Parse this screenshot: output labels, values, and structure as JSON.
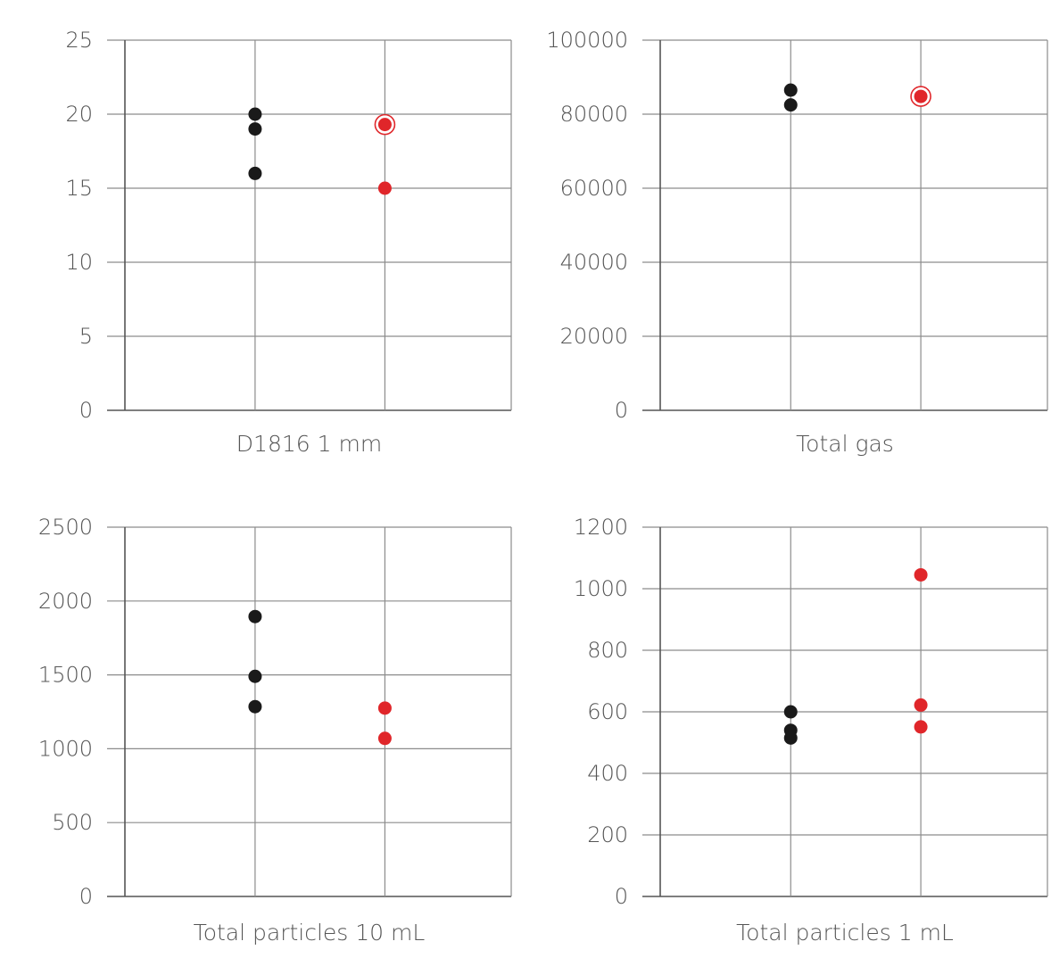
{
  "colors": {
    "grid": "#8c8c8c",
    "axis": "#555555",
    "text": "#555555",
    "group_a": "#1a1a1a",
    "group_b": "#e0262a"
  },
  "chart_data": [
    {
      "type": "scatter",
      "xlabel": "D1816 1 mm",
      "ylim": [
        0,
        25
      ],
      "yticks": [
        0,
        5,
        10,
        15,
        20,
        25
      ],
      "series": [
        {
          "color": "#1a1a1a",
          "points": [
            {
              "x": 1,
              "y": 20
            },
            {
              "x": 1,
              "y": 19
            },
            {
              "x": 1,
              "y": 16
            }
          ]
        },
        {
          "color": "#e0262a",
          "points": [
            {
              "x": 2,
              "y": 19.3,
              "ring": true
            },
            {
              "x": 2,
              "y": 15
            }
          ]
        }
      ]
    },
    {
      "type": "scatter",
      "xlabel": "Total gas",
      "ylim": [
        0,
        100000
      ],
      "yticks": [
        0,
        20000,
        40000,
        60000,
        80000,
        100000
      ],
      "series": [
        {
          "color": "#1a1a1a",
          "points": [
            {
              "x": 1,
              "y": 86500
            },
            {
              "x": 1,
              "y": 82500
            }
          ]
        },
        {
          "color": "#e0262a",
          "points": [
            {
              "x": 2,
              "y": 84800,
              "ring": true
            }
          ]
        }
      ]
    },
    {
      "type": "scatter",
      "xlabel": "Total particles 10 mL",
      "ylim": [
        0,
        2500
      ],
      "yticks": [
        0,
        500,
        1000,
        1500,
        2000,
        2500
      ],
      "series": [
        {
          "color": "#1a1a1a",
          "points": [
            {
              "x": 1,
              "y": 1895
            },
            {
              "x": 1,
              "y": 1490
            },
            {
              "x": 1,
              "y": 1285
            }
          ]
        },
        {
          "color": "#e0262a",
          "points": [
            {
              "x": 2,
              "y": 1275
            },
            {
              "x": 2,
              "y": 1070
            }
          ]
        }
      ]
    },
    {
      "type": "scatter",
      "xlabel": "Total particles 1 mL",
      "ylim": [
        0,
        1200
      ],
      "yticks": [
        0,
        200,
        400,
        600,
        800,
        1000,
        1200
      ],
      "series": [
        {
          "color": "#1a1a1a",
          "points": [
            {
              "x": 1,
              "y": 600
            },
            {
              "x": 1,
              "y": 540
            },
            {
              "x": 1,
              "y": 515
            }
          ]
        },
        {
          "color": "#e0262a",
          "points": [
            {
              "x": 2,
              "y": 1045
            },
            {
              "x": 2,
              "y": 622
            },
            {
              "x": 2,
              "y": 551
            }
          ]
        }
      ]
    }
  ]
}
